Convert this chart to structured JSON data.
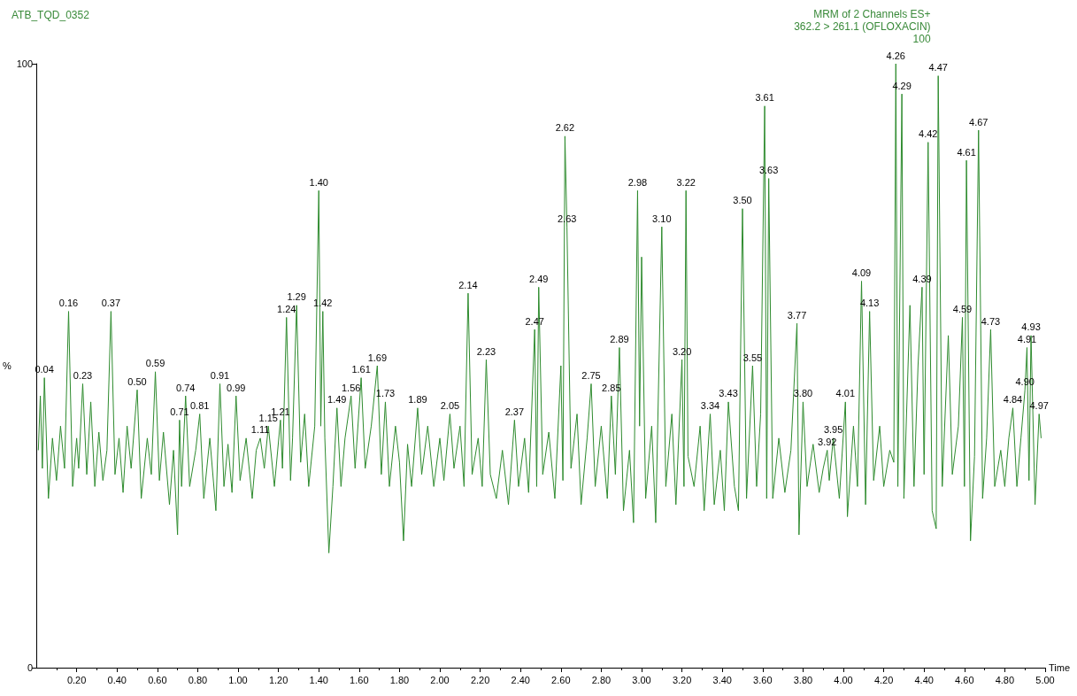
{
  "chart_data": {
    "type": "line",
    "title": "ATB_TQD_0352",
    "subtitle": "MRM of 2 Channels ES+\n362.2 > 261.1 (OFLOXACIN)\n100",
    "xlabel": "Time",
    "ylabel": "%",
    "x": [
      0.01,
      0.02,
      0.03,
      0.04,
      0.06,
      0.08,
      0.1,
      0.12,
      0.14,
      0.16,
      0.18,
      0.2,
      0.21,
      0.23,
      0.25,
      0.27,
      0.29,
      0.31,
      0.33,
      0.35,
      0.37,
      0.39,
      0.41,
      0.43,
      0.45,
      0.47,
      0.5,
      0.52,
      0.55,
      0.57,
      0.59,
      0.61,
      0.63,
      0.66,
      0.68,
      0.7,
      0.71,
      0.72,
      0.74,
      0.76,
      0.79,
      0.81,
      0.83,
      0.86,
      0.89,
      0.91,
      0.93,
      0.95,
      0.97,
      0.99,
      1.01,
      1.04,
      1.07,
      1.09,
      1.11,
      1.13,
      1.15,
      1.18,
      1.21,
      1.22,
      1.24,
      1.26,
      1.27,
      1.29,
      1.31,
      1.33,
      1.35,
      1.38,
      1.4,
      1.41,
      1.42,
      1.43,
      1.45,
      1.47,
      1.49,
      1.51,
      1.53,
      1.56,
      1.58,
      1.61,
      1.63,
      1.66,
      1.69,
      1.71,
      1.73,
      1.75,
      1.78,
      1.8,
      1.82,
      1.84,
      1.86,
      1.89,
      1.91,
      1.94,
      1.97,
      2.0,
      2.02,
      2.05,
      2.07,
      2.1,
      2.12,
      2.14,
      2.16,
      2.19,
      2.21,
      2.23,
      2.25,
      2.28,
      2.31,
      2.34,
      2.37,
      2.39,
      2.42,
      2.44,
      2.47,
      2.48,
      2.49,
      2.51,
      2.54,
      2.57,
      2.6,
      2.61,
      2.62,
      2.63,
      2.65,
      2.68,
      2.7,
      2.73,
      2.75,
      2.77,
      2.8,
      2.83,
      2.85,
      2.87,
      2.89,
      2.91,
      2.94,
      2.96,
      2.98,
      2.99,
      3.0,
      3.02,
      3.05,
      3.07,
      3.1,
      3.12,
      3.15,
      3.17,
      3.2,
      3.21,
      3.22,
      3.23,
      3.26,
      3.29,
      3.31,
      3.34,
      3.36,
      3.39,
      3.41,
      3.43,
      3.46,
      3.48,
      3.5,
      3.52,
      3.55,
      3.57,
      3.59,
      3.61,
      3.62,
      3.63,
      3.65,
      3.68,
      3.71,
      3.74,
      3.77,
      3.78,
      3.8,
      3.82,
      3.85,
      3.88,
      3.9,
      3.92,
      3.93,
      3.95,
      3.98,
      4.01,
      4.02,
      4.05,
      4.07,
      4.09,
      4.11,
      4.13,
      4.15,
      4.18,
      4.2,
      4.23,
      4.25,
      4.26,
      4.27,
      4.29,
      4.3,
      4.33,
      4.35,
      4.37,
      4.39,
      4.4,
      4.42,
      4.44,
      4.46,
      4.47,
      4.49,
      4.52,
      4.54,
      4.57,
      4.59,
      4.6,
      4.61,
      4.63,
      4.65,
      4.67,
      4.69,
      4.71,
      4.73,
      4.75,
      4.78,
      4.8,
      4.82,
      4.84,
      4.86,
      4.88,
      4.9,
      4.91,
      4.92,
      4.93,
      4.95,
      4.97,
      4.98
    ],
    "series": [
      {
        "color": "#2e8b2e",
        "values": [
          36,
          45,
          33,
          48,
          28,
          38,
          31,
          40,
          33,
          59,
          30,
          38,
          33,
          47,
          32,
          44,
          30,
          39,
          31,
          36,
          59,
          32,
          38,
          29,
          40,
          33,
          46,
          28,
          38,
          32,
          49,
          31,
          39,
          27,
          36,
          22,
          41,
          30,
          45,
          30,
          36,
          42,
          28,
          38,
          26,
          47,
          30,
          37,
          29,
          45,
          31,
          38,
          28,
          36,
          38,
          33,
          40,
          30,
          41,
          33,
          58,
          31,
          38,
          60,
          34,
          42,
          30,
          40,
          79,
          40,
          59,
          38,
          19,
          30,
          43,
          30,
          38,
          45,
          33,
          48,
          33,
          40,
          50,
          32,
          44,
          30,
          40,
          34,
          21,
          37,
          30,
          43,
          32,
          40,
          30,
          38,
          31,
          42,
          33,
          40,
          30,
          62,
          32,
          38,
          30,
          51,
          32,
          28,
          36,
          27,
          41,
          30,
          38,
          29,
          56,
          30,
          63,
          32,
          39,
          28,
          50,
          31,
          88,
          73,
          33,
          42,
          27,
          38,
          47,
          30,
          40,
          28,
          45,
          32,
          53,
          26,
          36,
          24,
          79,
          40,
          68,
          28,
          40,
          24,
          73,
          30,
          42,
          27,
          51,
          30,
          79,
          35,
          30,
          40,
          26,
          42,
          27,
          36,
          26,
          44,
          30,
          26,
          76,
          28,
          50,
          30,
          42,
          93,
          28,
          81,
          28,
          38,
          29,
          36,
          57,
          22,
          44,
          30,
          37,
          29,
          33,
          36,
          31,
          38,
          28,
          44,
          25,
          40,
          30,
          64,
          27,
          59,
          31,
          40,
          30,
          36,
          34,
          100,
          30,
          95,
          28,
          60,
          30,
          50,
          63,
          32,
          87,
          26,
          23,
          98,
          30,
          55,
          32,
          40,
          58,
          30,
          84,
          21,
          35,
          89,
          28,
          38,
          56,
          30,
          36,
          30,
          38,
          43,
          30,
          38,
          46,
          53,
          31,
          55,
          27,
          42,
          38
        ]
      }
    ],
    "annotations": [
      {
        "text": "0.04",
        "x": 0.04,
        "y": 48
      },
      {
        "text": "0.16",
        "x": 0.16,
        "y": 59
      },
      {
        "text": "0.23",
        "x": 0.23,
        "y": 47
      },
      {
        "text": "0.37",
        "x": 0.37,
        "y": 59
      },
      {
        "text": "0.50",
        "x": 0.5,
        "y": 46
      },
      {
        "text": "0.59",
        "x": 0.59,
        "y": 49
      },
      {
        "text": "0.71",
        "x": 0.71,
        "y": 41
      },
      {
        "text": "0.74",
        "x": 0.74,
        "y": 45
      },
      {
        "text": "0.81",
        "x": 0.81,
        "y": 42
      },
      {
        "text": "0.91",
        "x": 0.91,
        "y": 47
      },
      {
        "text": "0.99",
        "x": 0.99,
        "y": 45
      },
      {
        "text": "1.11",
        "x": 1.11,
        "y": 38
      },
      {
        "text": "1.15",
        "x": 1.15,
        "y": 40
      },
      {
        "text": "1.21",
        "x": 1.21,
        "y": 41
      },
      {
        "text": "1.24",
        "x": 1.24,
        "y": 58
      },
      {
        "text": "1.29",
        "x": 1.29,
        "y": 60
      },
      {
        "text": "1.40",
        "x": 1.4,
        "y": 79
      },
      {
        "text": "1.42",
        "x": 1.42,
        "y": 59
      },
      {
        "text": "1.49",
        "x": 1.49,
        "y": 43
      },
      {
        "text": "1.56",
        "x": 1.56,
        "y": 45
      },
      {
        "text": "1.61",
        "x": 1.61,
        "y": 48
      },
      {
        "text": "1.69",
        "x": 1.69,
        "y": 50
      },
      {
        "text": "1.73",
        "x": 1.73,
        "y": 44
      },
      {
        "text": "1.89",
        "x": 1.89,
        "y": 43
      },
      {
        "text": "2.05",
        "x": 2.05,
        "y": 42
      },
      {
        "text": "2.14",
        "x": 2.14,
        "y": 62
      },
      {
        "text": "2.23",
        "x": 2.23,
        "y": 51
      },
      {
        "text": "2.37",
        "x": 2.37,
        "y": 41
      },
      {
        "text": "2.47",
        "x": 2.47,
        "y": 56
      },
      {
        "text": "2.49",
        "x": 2.49,
        "y": 63
      },
      {
        "text": "2.62",
        "x": 2.62,
        "y": 88
      },
      {
        "text": "2.63",
        "x": 2.63,
        "y": 73
      },
      {
        "text": "2.75",
        "x": 2.75,
        "y": 47
      },
      {
        "text": "2.85",
        "x": 2.85,
        "y": 45
      },
      {
        "text": "2.89",
        "x": 2.89,
        "y": 53
      },
      {
        "text": "2.98",
        "x": 2.98,
        "y": 79
      },
      {
        "text": "3.10",
        "x": 3.1,
        "y": 73
      },
      {
        "text": "3.20",
        "x": 3.2,
        "y": 51
      },
      {
        "text": "3.22",
        "x": 3.22,
        "y": 79
      },
      {
        "text": "3.34",
        "x": 3.34,
        "y": 42
      },
      {
        "text": "3.43",
        "x": 3.43,
        "y": 44
      },
      {
        "text": "3.50",
        "x": 3.5,
        "y": 76
      },
      {
        "text": "3.55",
        "x": 3.55,
        "y": 50
      },
      {
        "text": "3.61",
        "x": 3.61,
        "y": 93
      },
      {
        "text": "3.63",
        "x": 3.63,
        "y": 81
      },
      {
        "text": "3.77",
        "x": 3.77,
        "y": 57
      },
      {
        "text": "3.80",
        "x": 3.8,
        "y": 44
      },
      {
        "text": "3.92",
        "x": 3.92,
        "y": 36
      },
      {
        "text": "3.95",
        "x": 3.95,
        "y": 38
      },
      {
        "text": "4.01",
        "x": 4.01,
        "y": 44
      },
      {
        "text": "4.09",
        "x": 4.09,
        "y": 64
      },
      {
        "text": "4.13",
        "x": 4.13,
        "y": 59
      },
      {
        "text": "4.26",
        "x": 4.26,
        "y": 100
      },
      {
        "text": "4.29",
        "x": 4.29,
        "y": 95
      },
      {
        "text": "4.39",
        "x": 4.39,
        "y": 63
      },
      {
        "text": "4.42",
        "x": 4.42,
        "y": 87
      },
      {
        "text": "4.47",
        "x": 4.47,
        "y": 98
      },
      {
        "text": "4.59",
        "x": 4.59,
        "y": 58
      },
      {
        "text": "4.61",
        "x": 4.61,
        "y": 84
      },
      {
        "text": "4.67",
        "x": 4.67,
        "y": 89
      },
      {
        "text": "4.73",
        "x": 4.73,
        "y": 56
      },
      {
        "text": "4.84",
        "x": 4.84,
        "y": 43
      },
      {
        "text": "4.90",
        "x": 4.9,
        "y": 46
      },
      {
        "text": "4.91",
        "x": 4.91,
        "y": 53
      },
      {
        "text": "4.93",
        "x": 4.93,
        "y": 55
      },
      {
        "text": "4.97",
        "x": 4.97,
        "y": 42
      }
    ],
    "xlim": [
      0,
      5.0
    ],
    "xticks": [
      {
        "value": 0.2,
        "label": "0.20"
      },
      {
        "value": 0.4,
        "label": "0.40"
      },
      {
        "value": 0.6,
        "label": "0.60"
      },
      {
        "value": 0.8,
        "label": "0.80"
      },
      {
        "value": 1.0,
        "label": "1.00"
      },
      {
        "value": 1.2,
        "label": "1.20"
      },
      {
        "value": 1.4,
        "label": "1.40"
      },
      {
        "value": 1.6,
        "label": "1.60"
      },
      {
        "value": 1.8,
        "label": "1.80"
      },
      {
        "value": 2.0,
        "label": "2.00"
      },
      {
        "value": 2.2,
        "label": "2.20"
      },
      {
        "value": 2.4,
        "label": "2.40"
      },
      {
        "value": 2.6,
        "label": "2.60"
      },
      {
        "value": 2.8,
        "label": "2.80"
      },
      {
        "value": 3.0,
        "label": "3.00"
      },
      {
        "value": 3.2,
        "label": "3.20"
      },
      {
        "value": 3.4,
        "label": "3.40"
      },
      {
        "value": 3.6,
        "label": "3.60"
      },
      {
        "value": 3.8,
        "label": "3.80"
      },
      {
        "value": 4.0,
        "label": "4.00"
      },
      {
        "value": 4.2,
        "label": "4.20"
      },
      {
        "value": 4.4,
        "label": "4.40"
      },
      {
        "value": 4.6,
        "label": "4.60"
      },
      {
        "value": 4.8,
        "label": "4.80"
      },
      {
        "value": 5.0,
        "label": "5.00"
      }
    ],
    "ylim": [
      0,
      100
    ],
    "yticks": [
      0,
      100
    ],
    "grid": false,
    "marker": "none",
    "line_style": "solid"
  }
}
